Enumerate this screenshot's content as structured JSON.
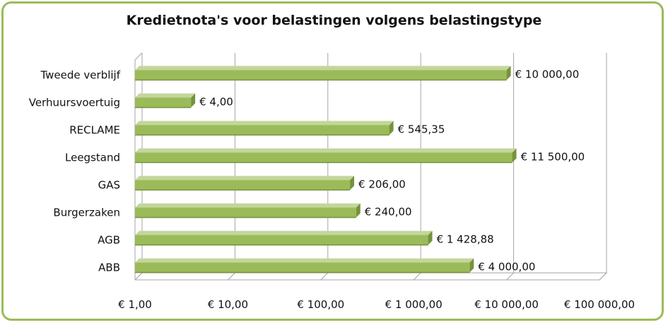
{
  "chart_data": {
    "type": "bar",
    "orientation": "horizontal",
    "title": "Kredietnota's voor belastingen volgens belastingstype",
    "xlabel": "",
    "ylabel": "",
    "x_scale": "log",
    "xlim": [
      1,
      100000
    ],
    "grid": true,
    "legend": "none",
    "categories": [
      "Tweede verblijf",
      "Verhuursvoertuig",
      "RECLAME",
      "Leegstand",
      "GAS",
      "Burgerzaken",
      "AGB",
      "ABB"
    ],
    "values": [
      10000,
      4,
      545.35,
      11500,
      206,
      240,
      1428.88,
      4000
    ],
    "data_labels": [
      "€ 10 000,00",
      "€  4,00",
      "€  545,35",
      "€ 11 500,00",
      "€  206,00",
      "€  240,00",
      "€ 1 428,88",
      "€ 4 000,00"
    ],
    "x_ticks": [
      1,
      10,
      100,
      1000,
      10000,
      100000
    ],
    "x_tick_labels": [
      "€  1,00",
      "€  10,00",
      "€  100,00",
      "€ 1 000,00",
      "€ 10 000,00",
      "€ 100 000,00"
    ],
    "colors": {
      "bar_front": "#9bbb59",
      "bar_top": "#c3d69b",
      "bar_side": "#76923c",
      "frame": "#9bbb59",
      "grid": "#a6a6a6"
    }
  }
}
